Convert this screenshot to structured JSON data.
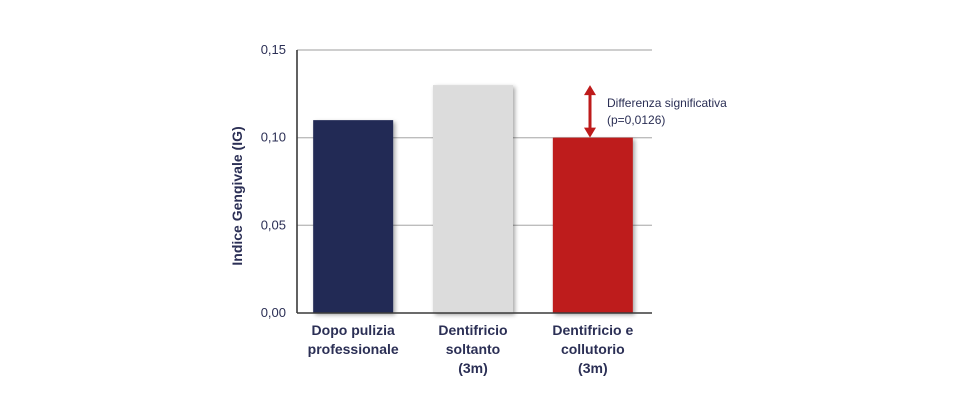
{
  "chart_data": {
    "type": "bar",
    "categories": [
      [
        "Dopo pulizia",
        "professionale"
      ],
      [
        "Dentifricio",
        "soltanto",
        "(3m)"
      ],
      [
        "Dentifricio e",
        "collutorio",
        "(3m)"
      ]
    ],
    "values": [
      0.11,
      0.13,
      0.1
    ],
    "bar_colors": [
      "#232a55",
      "#dcdcdc",
      "#be1b1b"
    ],
    "ylabel": "Indice Gengivale (IG)",
    "ylim": [
      0,
      0.15
    ],
    "yticks": [
      0,
      0.05,
      0.1,
      0.15
    ],
    "ytick_labels": [
      "0,00",
      "0,05",
      "0,10",
      "0,15"
    ],
    "grid": true,
    "annotation": {
      "lines": [
        "Differenza significativa",
        "(p=0,0126)"
      ],
      "arrow_from": 0.13,
      "arrow_to": 0.1,
      "arrow_color": "#be1b1b"
    }
  }
}
